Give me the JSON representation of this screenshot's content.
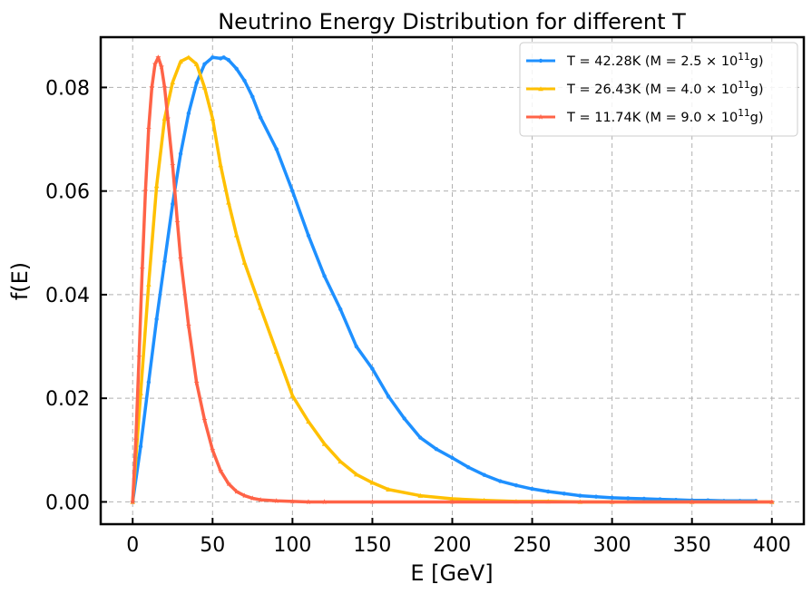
{
  "chart_data": {
    "type": "line",
    "title": "Neutrino Energy Distribution for different T",
    "xlabel": "E [GeV]",
    "ylabel": "f(E)",
    "xlim": [
      -20,
      420
    ],
    "ylim": [
      -0.0043,
      0.0897
    ],
    "xticks": [
      0,
      50,
      100,
      150,
      200,
      250,
      300,
      350,
      400
    ],
    "xtick_labels": [
      "0",
      "50",
      "100",
      "150",
      "200",
      "250",
      "300",
      "350",
      "400"
    ],
    "yticks": [
      0.0,
      0.02,
      0.04,
      0.06,
      0.08
    ],
    "ytick_labels": [
      "0.00",
      "0.02",
      "0.04",
      "0.06",
      "0.08"
    ],
    "grid": true,
    "legend_position": "top-right",
    "series": [
      {
        "name": "T = 42.28K (M = 2.5 × 10¹¹g)",
        "legend": {
          "pre": "T = 42.28K (M = 2.5 × 10",
          "sup": "11",
          "post": "g)"
        },
        "color": "#1E90FF",
        "marker": "circle",
        "x": [
          0,
          5,
          10,
          15,
          20,
          25,
          30,
          35,
          40,
          45,
          50,
          55,
          57,
          60,
          65,
          70,
          75,
          80,
          90,
          100,
          110,
          120,
          130,
          140,
          150,
          160,
          170,
          180,
          190,
          200,
          210,
          220,
          230,
          240,
          250,
          260,
          270,
          280,
          290,
          300,
          310,
          320,
          330,
          340,
          350,
          360,
          370,
          380,
          390
        ],
        "y": [
          0.0,
          0.0107,
          0.0231,
          0.0353,
          0.0464,
          0.0575,
          0.0672,
          0.075,
          0.0809,
          0.0845,
          0.0858,
          0.0856,
          0.0858,
          0.0853,
          0.0836,
          0.0813,
          0.0782,
          0.0742,
          0.0681,
          0.06,
          0.0514,
          0.0436,
          0.0372,
          0.03,
          0.0257,
          0.0204,
          0.0161,
          0.0124,
          0.0102,
          0.0085,
          0.0067,
          0.0052,
          0.004,
          0.0032,
          0.0025,
          0.002,
          0.0016,
          0.0012,
          0.001,
          0.0008,
          0.0007,
          0.0006,
          0.0005,
          0.0004,
          0.0003,
          0.0003,
          0.0002,
          0.0002,
          0.0002
        ]
      },
      {
        "name": "T = 26.43K (M = 4.0 × 10¹¹g)",
        "legend": {
          "pre": "T = 26.43K (M = 4.0 × 10",
          "sup": "11",
          "post": "g)"
        },
        "color": "#FFC000",
        "marker": "triangle",
        "x": [
          0,
          5,
          10,
          15,
          20,
          25,
          30,
          35,
          40,
          45,
          50,
          55,
          60,
          65,
          70,
          80,
          90,
          100,
          110,
          120,
          130,
          140,
          150,
          160,
          180,
          200,
          220,
          240,
          260,
          280,
          300,
          350,
          400
        ],
        "y": [
          0.0,
          0.021,
          0.042,
          0.061,
          0.074,
          0.081,
          0.085,
          0.0858,
          0.0845,
          0.08,
          0.074,
          0.065,
          0.0578,
          0.0515,
          0.0462,
          0.0375,
          0.029,
          0.0205,
          0.0155,
          0.0112,
          0.0078,
          0.0053,
          0.0037,
          0.0024,
          0.0012,
          0.0006,
          0.0003,
          0.0001,
          0.0001,
          0.0,
          0.0,
          0.0,
          0.0
        ]
      },
      {
        "name": "T = 11.74K (M = 9.0 × 10¹¹g)",
        "legend": {
          "pre": "T = 11.74K (M = 9.0 × 10",
          "sup": "11",
          "post": "g)"
        },
        "color": "#FF6347",
        "marker": "star",
        "x": [
          0,
          2,
          4,
          6,
          8,
          10,
          12,
          14,
          16,
          18,
          20,
          22,
          25,
          28,
          30,
          35,
          40,
          45,
          50,
          55,
          60,
          65,
          70,
          75,
          80,
          90,
          100,
          110,
          120,
          150,
          200,
          250,
          300,
          350,
          400
        ],
        "y": [
          0.0,
          0.012,
          0.028,
          0.045,
          0.06,
          0.072,
          0.08,
          0.0845,
          0.0858,
          0.084,
          0.08,
          0.074,
          0.065,
          0.054,
          0.047,
          0.034,
          0.023,
          0.0158,
          0.01,
          0.006,
          0.0035,
          0.002,
          0.0012,
          0.0007,
          0.0004,
          0.0002,
          0.0001,
          0.0,
          0.0,
          0.0,
          0.0,
          0.0,
          0.0,
          0.0,
          0.0
        ]
      }
    ]
  }
}
